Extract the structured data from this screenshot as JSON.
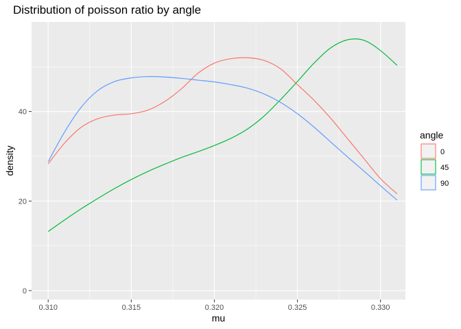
{
  "chart_data": {
    "type": "line",
    "title": "Distribution of poisson ratio by angle",
    "xlabel": "mu",
    "ylabel": "density",
    "xlim": [
      0.309,
      0.3315
    ],
    "ylim": [
      -2,
      60
    ],
    "x_ticks": [
      0.31,
      0.315,
      0.32,
      0.325,
      0.33
    ],
    "x_tick_labels": [
      "0.310",
      "0.315",
      "0.320",
      "0.325",
      "0.330"
    ],
    "y_ticks": [
      0,
      20,
      40
    ],
    "y_tick_labels": [
      "0",
      "20",
      "40"
    ],
    "grid": true,
    "legend": {
      "title": "angle",
      "position": "right",
      "entries": [
        "0",
        "45",
        "90"
      ]
    },
    "series": [
      {
        "name": "0",
        "color": "#F8766D",
        "x": [
          0.31,
          0.311,
          0.312,
          0.313,
          0.314,
          0.315,
          0.316,
          0.317,
          0.318,
          0.319,
          0.32,
          0.321,
          0.322,
          0.323,
          0.324,
          0.325,
          0.326,
          0.327,
          0.328,
          0.329,
          0.33,
          0.331
        ],
        "values": [
          28.3,
          33.0,
          36.5,
          38.4,
          39.2,
          39.5,
          40.3,
          42.2,
          45.0,
          48.5,
          50.8,
          51.8,
          52.0,
          51.4,
          49.5,
          46.0,
          42.5,
          38.5,
          34.0,
          29.5,
          25.0,
          21.6
        ]
      },
      {
        "name": "45",
        "color": "#00BA38",
        "x": [
          0.31,
          0.311,
          0.312,
          0.313,
          0.314,
          0.315,
          0.316,
          0.317,
          0.318,
          0.319,
          0.32,
          0.321,
          0.322,
          0.323,
          0.324,
          0.325,
          0.326,
          0.327,
          0.328,
          0.329,
          0.33,
          0.331
        ],
        "values": [
          13.2,
          15.8,
          18.3,
          20.6,
          22.8,
          24.8,
          26.6,
          28.2,
          29.7,
          31.0,
          32.4,
          34.0,
          36.1,
          39.0,
          42.7,
          46.7,
          50.8,
          54.2,
          56.0,
          55.9,
          53.6,
          50.3
        ]
      },
      {
        "name": "90",
        "color": "#619CFF",
        "x": [
          0.31,
          0.311,
          0.312,
          0.313,
          0.314,
          0.315,
          0.316,
          0.317,
          0.318,
          0.319,
          0.32,
          0.321,
          0.322,
          0.323,
          0.324,
          0.325,
          0.326,
          0.327,
          0.328,
          0.329,
          0.33,
          0.331
        ],
        "values": [
          28.8,
          35.5,
          41.0,
          44.7,
          46.7,
          47.5,
          47.8,
          47.7,
          47.4,
          47.0,
          46.6,
          46.0,
          45.2,
          43.9,
          42.0,
          39.5,
          36.5,
          33.2,
          29.9,
          26.7,
          23.4,
          20.2
        ]
      }
    ]
  }
}
